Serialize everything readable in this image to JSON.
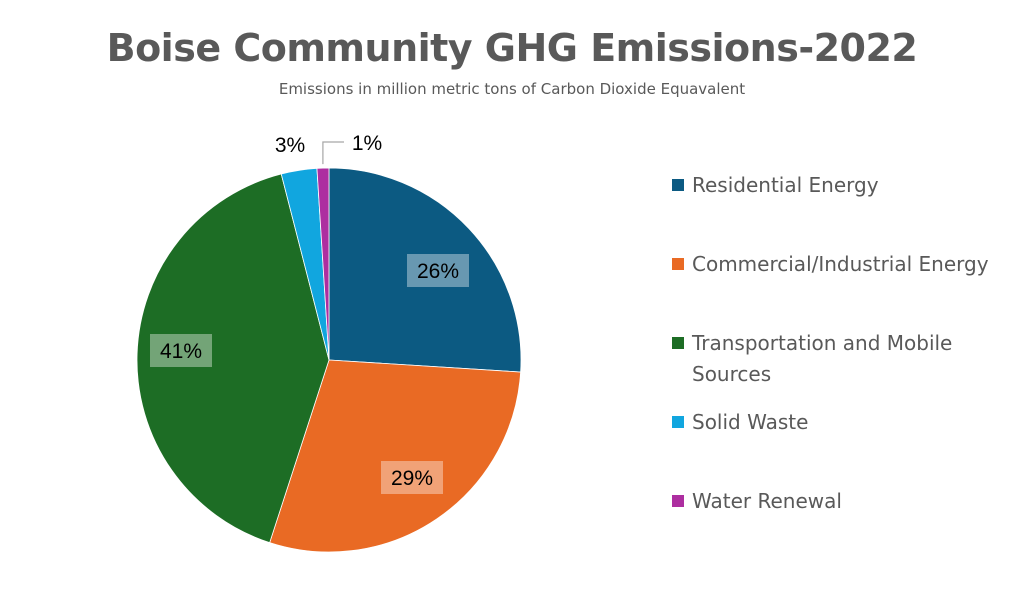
{
  "chart_data": {
    "type": "pie",
    "title": "Boise Community GHG Emissions-2022",
    "subtitle": "Emissions in million metric tons of Carbon Dioxide Equavalent",
    "legend_position": "right",
    "series": [
      {
        "name": "",
        "slices": [
          {
            "label": "Residential Energy",
            "value": 26,
            "display": "26%",
            "color": "#0c5a82"
          },
          {
            "label": "Commercial/Industrial Energy",
            "value": 29,
            "display": "29%",
            "color": "#e96a24"
          },
          {
            "label": "Transportation and Mobile Sources",
            "value": 41,
            "display": "41%",
            "color": "#1d6d25"
          },
          {
            "label": "Solid Waste",
            "value": 3,
            "display": "3%",
            "color": "#11a6df"
          },
          {
            "label": "Water Renewal",
            "value": 1,
            "display": "1%",
            "color": "#ad2ea0"
          }
        ]
      }
    ]
  }
}
